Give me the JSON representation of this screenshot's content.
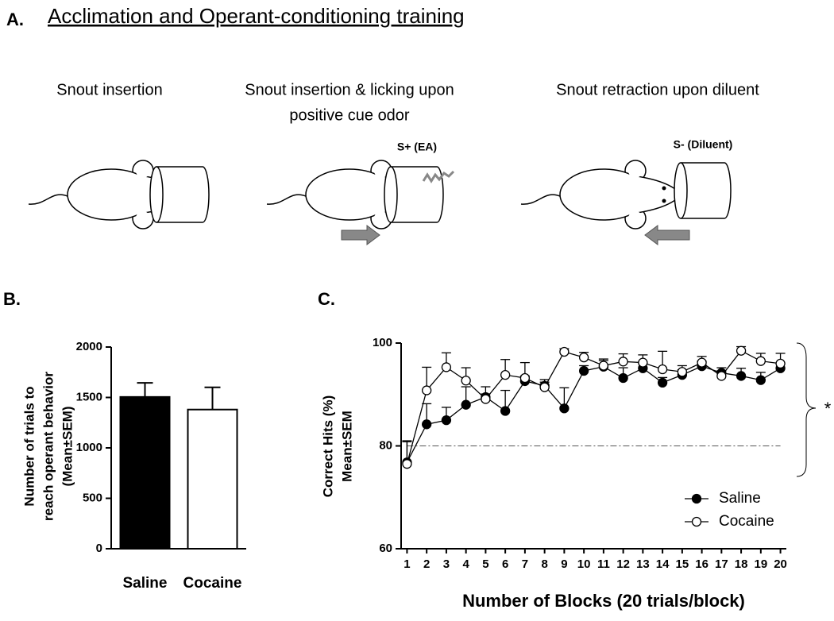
{
  "panel_a": {
    "label": "A.",
    "title": "Acclimation and Operant-conditioning training",
    "steps": [
      {
        "caption": [
          "Snout insertion"
        ]
      },
      {
        "caption": [
          "Snout insertion & licking upon",
          "positive cue odor"
        ],
        "odor": "S+ (EA)"
      },
      {
        "caption": [
          "Snout retraction upon diluent"
        ],
        "odor": "S- (Diluent)"
      }
    ]
  },
  "chart_data": [
    {
      "type": "bar",
      "panel_label": "B.",
      "ylabel": [
        "Number of trials to",
        "reach operant behavior",
        "(Mean±SEM)"
      ],
      "categories": [
        "Saline",
        "Cocaine"
      ],
      "values": [
        1505,
        1380
      ],
      "errors": [
        140,
        220
      ],
      "colors": [
        "#000000",
        "#ffffff"
      ],
      "ylim": [
        0,
        2000
      ],
      "yticks": [
        0,
        500,
        1000,
        1500,
        2000
      ]
    },
    {
      "type": "line",
      "panel_label": "C.",
      "ylabel": [
        "Correct Hits (%)",
        "Mean±SEM"
      ],
      "xlabel": "Number of Blocks (20 trials/block)",
      "x": [
        1,
        2,
        3,
        4,
        5,
        6,
        7,
        8,
        9,
        10,
        11,
        12,
        13,
        14,
        15,
        16,
        17,
        18,
        19,
        20
      ],
      "series": [
        {
          "name": "Saline",
          "color": "#000000",
          "marker": "filled",
          "values": [
            76.8,
            84.2,
            85.0,
            88.0,
            89.5,
            86.8,
            92.6,
            91.7,
            87.3,
            94.6,
            95.4,
            93.2,
            95.1,
            92.3,
            93.8,
            95.5,
            94.2,
            93.6,
            92.8,
            95.1
          ],
          "errors": [
            4,
            4,
            2.5,
            3.5,
            2,
            4,
            1,
            1.2,
            4,
            1,
            1.5,
            2,
            1,
            1,
            1,
            1,
            1,
            1.5,
            1.5,
            1
          ]
        },
        {
          "name": "Cocaine",
          "color": "#000000",
          "marker": "open",
          "values": [
            76.5,
            90.8,
            95.3,
            92.7,
            89.1,
            93.8,
            93.2,
            91.4,
            98.3,
            97.2,
            95.6,
            96.4,
            96.2,
            94.9,
            94.4,
            96.2,
            93.6,
            98.5,
            96.5,
            96.0
          ],
          "errors": [
            4.5,
            4.5,
            2.8,
            2.5,
            1,
            3,
            3,
            1,
            0.6,
            1,
            1,
            1.5,
            1.5,
            3.5,
            1.2,
            1.2,
            1,
            0.8,
            1.5,
            2
          ]
        }
      ],
      "reference_line": 80,
      "annotation": "*",
      "xlim": [
        0.7,
        20.3
      ],
      "xticks": [
        1,
        2,
        3,
        4,
        5,
        6,
        7,
        8,
        9,
        10,
        11,
        12,
        13,
        14,
        15,
        16,
        17,
        18,
        19,
        20
      ],
      "ylim": [
        60,
        100
      ],
      "yticks": [
        60,
        80,
        100
      ],
      "legend": "lower right"
    }
  ]
}
